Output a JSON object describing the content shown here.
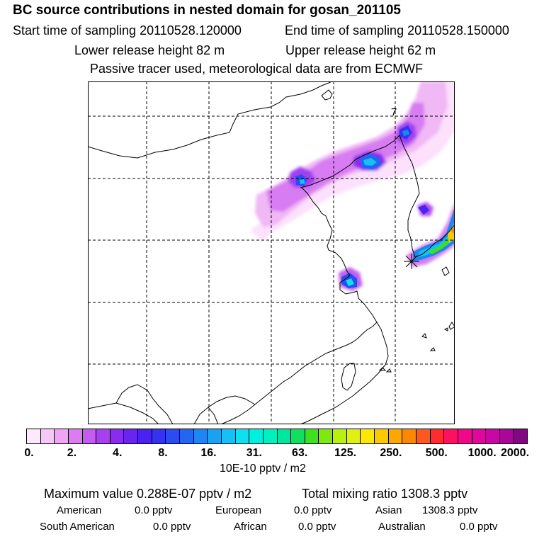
{
  "header": {
    "title": "BC  source contributions in nested domain for gosan_201105",
    "start_label": "Start time of sampling 20110528.120000",
    "end_label": "End time of sampling 20110528.150000",
    "lower_label": "Lower release height   82 m",
    "upper_label": "Upper release height   62 m",
    "tracer_note": "Passive tracer used, meteorological data are from ECMWF"
  },
  "map": {
    "annotation": "7"
  },
  "colorbar": {
    "tick_labels": [
      "0.",
      "2.",
      "4.",
      "8.",
      "16.",
      "31.",
      "63.",
      "125.",
      "250.",
      "500.",
      "1000.",
      "2000."
    ],
    "segment_colors": [
      "#fde8fd",
      "#f7c8f7",
      "#eea6f4",
      "#dc7cf0",
      "#c45cf0",
      "#a640f0",
      "#8a2cf0",
      "#6a24f0",
      "#4a22ef",
      "#3434f0",
      "#2c4cf0",
      "#2466f0",
      "#1e86f2",
      "#1aa2f2",
      "#14c0f4",
      "#0ee0f0",
      "#00f0e0",
      "#00f0c0",
      "#00e8a0",
      "#10e060",
      "#40e020",
      "#80e810",
      "#b8f010",
      "#e0f010",
      "#fce800",
      "#fcc800",
      "#fca800",
      "#fc8800",
      "#fc5820",
      "#fc2c30",
      "#fc1060",
      "#f00888",
      "#e0089c",
      "#c808a4",
      "#a80898",
      "#800880"
    ],
    "unit": "10E-10 pptv / m2"
  },
  "footer": {
    "max_value": "Maximum value  0.288E-07 pptv / m2",
    "total_mixing": "Total mixing ratio      1308.3 pptv",
    "american_label": "American",
    "american_value": "0.0 pptv",
    "european_label": "European",
    "european_value": "0.0 pptv",
    "asian_label": "Asian",
    "asian_value": "1308.3 pptv",
    "south_american_label": "South American",
    "south_american_value": "0.0 pptv",
    "african_label": "African",
    "african_value": "0.0 pptv",
    "australian_label": "Australian",
    "australian_value": "0.0 pptv"
  }
}
